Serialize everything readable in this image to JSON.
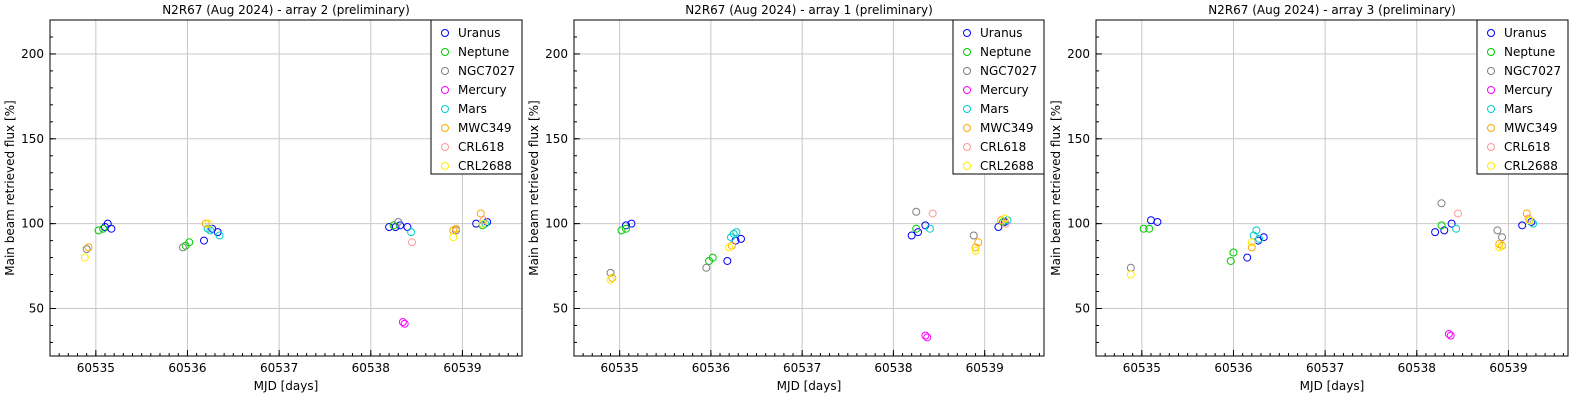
{
  "chart_data": [
    {
      "type": "scatter",
      "title": "N2R67 (Aug 2024) - array 2 (preliminary)",
      "xlabel": "MJD [days]",
      "ylabel": "Main beam retrieved flux [%]",
      "xlim": [
        60534.5,
        60539.65
      ],
      "ylim": [
        22,
        220
      ],
      "xticks": [
        60535,
        60536,
        60537,
        60538,
        60539
      ],
      "yticks": [
        50,
        100,
        150,
        200
      ],
      "grid": true,
      "legend_position": "top-right",
      "series": [
        {
          "name": "Uranus",
          "color": "#0000ff",
          "points": [
            [
              60535.1,
              98
            ],
            [
              60535.13,
              100
            ],
            [
              60535.17,
              97
            ],
            [
              60536.18,
              90
            ],
            [
              60536.27,
              97
            ],
            [
              60536.33,
              95
            ],
            [
              60538.2,
              98
            ],
            [
              60538.27,
              98
            ],
            [
              60538.32,
              99
            ],
            [
              60538.4,
              98
            ],
            [
              60539.15,
              100
            ],
            [
              60539.27,
              101
            ]
          ]
        },
        {
          "name": "Neptune",
          "color": "#00cc00",
          "points": [
            [
              60535.03,
              96
            ],
            [
              60535.08,
              97
            ],
            [
              60535.98,
              87
            ],
            [
              60536.02,
              89
            ],
            [
              60538.25,
              99
            ],
            [
              60539.22,
              99
            ]
          ]
        },
        {
          "name": "NGC7027",
          "color": "#808080",
          "points": [
            [
              60534.9,
              85
            ],
            [
              60535.95,
              86
            ],
            [
              60538.3,
              101
            ],
            [
              60538.93,
              96
            ]
          ]
        },
        {
          "name": "Mercury",
          "color": "#ff00ff",
          "points": [
            [
              60538.35,
              42
            ],
            [
              60538.37,
              41
            ]
          ]
        },
        {
          "name": "Mars",
          "color": "#00cccc",
          "points": [
            [
              60536.22,
              97
            ],
            [
              60536.25,
              96
            ],
            [
              60536.35,
              93
            ],
            [
              60538.44,
              95
            ],
            [
              60539.25,
              100
            ]
          ]
        },
        {
          "name": "MWC349",
          "color": "#ffaa00",
          "points": [
            [
              60534.92,
              86
            ],
            [
              60536.2,
              100
            ],
            [
              60538.9,
              96
            ],
            [
              60538.93,
              97
            ],
            [
              60539.2,
              106
            ]
          ]
        },
        {
          "name": "CRL618",
          "color": "#ff9999",
          "points": [
            [
              60538.45,
              89
            ],
            [
              60539.23,
              102
            ]
          ]
        },
        {
          "name": "CRL2688",
          "color": "#ffee00",
          "points": [
            [
              60534.88,
              80
            ],
            [
              60536.23,
              100
            ],
            [
              60538.9,
              92
            ],
            [
              60539.22,
              100
            ]
          ]
        }
      ]
    },
    {
      "type": "scatter",
      "title": "N2R67 (Aug 2024) - array 1 (preliminary)",
      "xlabel": "MJD [days]",
      "ylabel": "Main beam retrieved flux [%]",
      "xlim": [
        60534.5,
        60539.65
      ],
      "ylim": [
        22,
        220
      ],
      "xticks": [
        60535,
        60536,
        60537,
        60538,
        60539
      ],
      "yticks": [
        50,
        100,
        150,
        200
      ],
      "grid": true,
      "legend_position": "top-right",
      "series": [
        {
          "name": "Uranus",
          "color": "#0000ff",
          "points": [
            [
              60535.07,
              99
            ],
            [
              60535.13,
              100
            ],
            [
              60536.18,
              78
            ],
            [
              60536.27,
              90
            ],
            [
              60536.33,
              91
            ],
            [
              60538.2,
              93
            ],
            [
              60538.27,
              95
            ],
            [
              60538.35,
              99
            ],
            [
              60539.15,
              98
            ],
            [
              60539.22,
              101
            ]
          ]
        },
        {
          "name": "Neptune",
          "color": "#00cc00",
          "points": [
            [
              60535.02,
              96
            ],
            [
              60535.07,
              97
            ],
            [
              60535.98,
              78
            ],
            [
              60536.02,
              80
            ],
            [
              60538.25,
              97
            ],
            [
              60539.2,
              101
            ]
          ]
        },
        {
          "name": "NGC7027",
          "color": "#808080",
          "points": [
            [
              60534.9,
              71
            ],
            [
              60535.95,
              74
            ],
            [
              60538.25,
              107
            ],
            [
              60538.88,
              93
            ]
          ]
        },
        {
          "name": "Mercury",
          "color": "#ff00ff",
          "points": [
            [
              60538.35,
              34
            ],
            [
              60538.37,
              33
            ]
          ]
        },
        {
          "name": "Mars",
          "color": "#00cccc",
          "points": [
            [
              60536.22,
              92
            ],
            [
              60536.25,
              94
            ],
            [
              60536.28,
              95
            ],
            [
              60538.4,
              97
            ],
            [
              60539.25,
              102
            ]
          ]
        },
        {
          "name": "MWC349",
          "color": "#ffaa00",
          "points": [
            [
              60534.92,
              68
            ],
            [
              60536.23,
              87
            ],
            [
              60538.9,
              86
            ],
            [
              60538.93,
              89
            ],
            [
              60539.18,
              102
            ]
          ]
        },
        {
          "name": "CRL618",
          "color": "#ff9999",
          "points": [
            [
              60538.43,
              106
            ],
            [
              60539.23,
              100
            ]
          ]
        },
        {
          "name": "CRL2688",
          "color": "#ffee00",
          "points": [
            [
              60534.9,
              67
            ],
            [
              60536.2,
              86
            ],
            [
              60538.9,
              84
            ],
            [
              60539.22,
              103
            ]
          ]
        }
      ]
    },
    {
      "type": "scatter",
      "title": "N2R67 (Aug 2024) - array 3 (preliminary)",
      "xlabel": "MJD [days]",
      "ylabel": "Main beam retrieved flux [%]",
      "xlim": [
        60534.5,
        60539.65
      ],
      "ylim": [
        22,
        220
      ],
      "xticks": [
        60535,
        60536,
        60537,
        60538,
        60539
      ],
      "yticks": [
        50,
        100,
        150,
        200
      ],
      "grid": true,
      "legend_position": "top-right",
      "series": [
        {
          "name": "Uranus",
          "color": "#0000ff",
          "points": [
            [
              60535.1,
              102
            ],
            [
              60535.17,
              101
            ],
            [
              60536.15,
              80
            ],
            [
              60536.27,
              90
            ],
            [
              60536.33,
              92
            ],
            [
              60538.2,
              95
            ],
            [
              60538.3,
              96
            ],
            [
              60538.38,
              100
            ],
            [
              60539.15,
              99
            ],
            [
              60539.25,
              101
            ]
          ]
        },
        {
          "name": "Neptune",
          "color": "#00cc00",
          "points": [
            [
              60535.02,
              97
            ],
            [
              60535.08,
              97
            ],
            [
              60535.97,
              78
            ],
            [
              60536.0,
              83
            ],
            [
              60538.27,
              99
            ],
            [
              60539.23,
              102
            ]
          ]
        },
        {
          "name": "NGC7027",
          "color": "#808080",
          "points": [
            [
              60534.88,
              74
            ],
            [
              60538.27,
              112
            ],
            [
              60538.88,
              96
            ],
            [
              60538.93,
              92
            ]
          ]
        },
        {
          "name": "Mercury",
          "color": "#ff00ff",
          "points": [
            [
              60538.35,
              35
            ],
            [
              60538.37,
              34
            ]
          ]
        },
        {
          "name": "Mars",
          "color": "#00cccc",
          "points": [
            [
              60536.22,
              93
            ],
            [
              60536.25,
              96
            ],
            [
              60536.28,
              91
            ],
            [
              60538.43,
              97
            ],
            [
              60539.27,
              100
            ]
          ]
        },
        {
          "name": "MWC349",
          "color": "#ffaa00",
          "points": [
            [
              60536.2,
              86
            ],
            [
              60538.9,
              88
            ],
            [
              60538.93,
              87
            ],
            [
              60539.2,
              106
            ]
          ]
        },
        {
          "name": "CRL618",
          "color": "#ff9999",
          "points": [
            [
              60538.45,
              106
            ],
            [
              60539.22,
              103
            ]
          ]
        },
        {
          "name": "CRL2688",
          "color": "#ffee00",
          "points": [
            [
              60534.88,
              70
            ],
            [
              60536.2,
              89
            ],
            [
              60538.9,
              86
            ],
            [
              60539.23,
              102
            ]
          ]
        }
      ]
    }
  ]
}
